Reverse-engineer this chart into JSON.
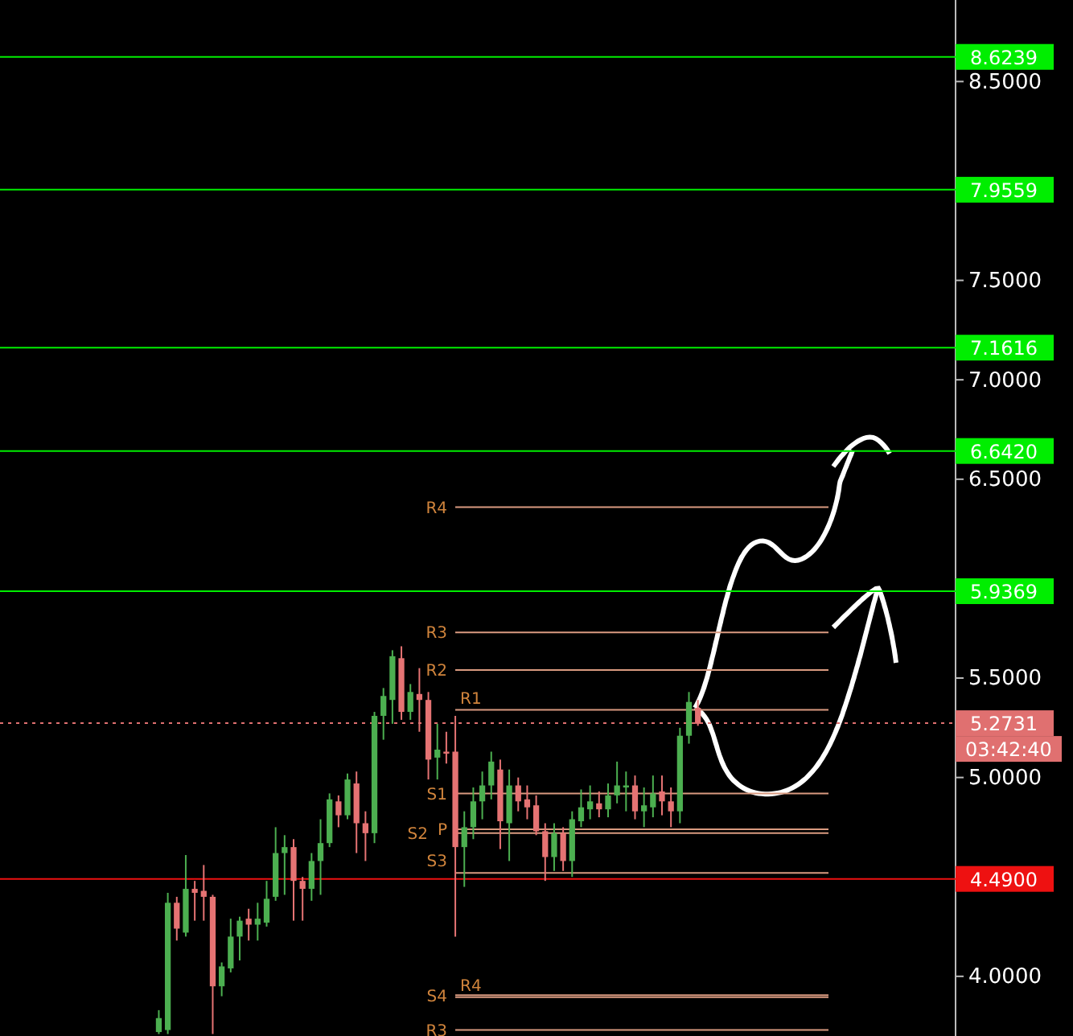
{
  "chart_data": {
    "type": "candlestick",
    "categories": [
      null,
      null,
      null,
      null,
      null,
      null,
      null,
      null,
      null,
      null,
      null,
      null,
      null,
      null,
      null,
      null,
      null,
      null,
      null,
      null,
      null,
      null,
      null,
      null,
      null,
      null,
      null,
      null,
      null,
      null,
      null,
      null,
      null,
      null,
      null,
      null,
      null,
      null,
      null,
      null,
      null,
      null,
      null,
      null,
      null,
      null,
      null,
      null,
      null,
      null,
      null,
      null,
      null,
      null,
      null,
      null,
      null,
      null,
      null,
      null,
      null,
      null,
      null,
      null,
      null,
      null,
      null,
      null,
      null,
      null,
      null,
      null,
      null,
      null,
      null,
      null,
      null,
      null,
      null,
      null,
      null,
      null,
      null,
      null,
      null,
      null,
      null,
      null,
      null,
      null,
      null,
      null,
      null,
      null,
      null,
      null,
      null,
      null,
      null,
      null,
      null,
      null,
      null,
      null,
      null,
      null
    ],
    "ohlc": [
      null,
      null,
      null,
      null,
      null,
      null,
      null,
      null,
      null,
      null,
      null,
      null,
      null,
      null,
      null,
      null,
      null,
      [
        3.72,
        3.83,
        3.71,
        3.79
      ],
      [
        3.73,
        4.42,
        3.71,
        4.37
      ],
      [
        4.37,
        4.4,
        4.18,
        4.24
      ],
      [
        4.22,
        4.61,
        4.2,
        4.44
      ],
      [
        4.44,
        4.48,
        4.28,
        4.42
      ],
      [
        4.43,
        4.56,
        4.28,
        4.4
      ],
      [
        4.4,
        4.41,
        3.71,
        3.95
      ],
      [
        3.95,
        4.07,
        3.9,
        4.05
      ],
      [
        4.04,
        4.29,
        4.02,
        4.2
      ],
      [
        4.2,
        4.3,
        4.08,
        4.28
      ],
      [
        4.29,
        4.34,
        4.18,
        4.26
      ],
      [
        4.26,
        4.37,
        4.18,
        4.29
      ],
      [
        4.27,
        4.48,
        4.25,
        4.39
      ],
      [
        4.4,
        4.75,
        4.38,
        4.62
      ],
      [
        4.62,
        4.71,
        4.41,
        4.65
      ],
      [
        4.65,
        4.69,
        4.28,
        4.48
      ],
      [
        4.48,
        4.5,
        4.28,
        4.44
      ],
      [
        4.44,
        4.62,
        4.38,
        4.58
      ],
      [
        4.58,
        4.79,
        4.41,
        4.67
      ],
      [
        4.67,
        4.92,
        4.65,
        4.89
      ],
      [
        4.88,
        4.91,
        4.75,
        4.81
      ],
      [
        4.81,
        5.02,
        4.79,
        4.99
      ],
      [
        4.97,
        5.03,
        4.62,
        4.77
      ],
      [
        4.77,
        4.83,
        4.58,
        4.72
      ],
      [
        4.72,
        5.33,
        4.67,
        5.31
      ],
      [
        5.31,
        5.45,
        5.19,
        5.41
      ],
      [
        5.39,
        5.64,
        5.27,
        5.61
      ],
      [
        5.6,
        5.66,
        5.29,
        5.33
      ],
      [
        5.33,
        5.47,
        5.29,
        5.43
      ],
      [
        5.42,
        5.55,
        5.23,
        5.39
      ],
      [
        5.39,
        5.43,
        4.99,
        5.09
      ],
      [
        5.1,
        5.27,
        4.99,
        5.14
      ],
      [
        5.13,
        5.23,
        5.07,
        5.12
      ],
      [
        5.13,
        5.31,
        4.2,
        4.65
      ],
      [
        4.65,
        4.83,
        4.45,
        4.75
      ],
      [
        4.75,
        4.95,
        4.69,
        4.88
      ],
      [
        4.88,
        5.03,
        4.79,
        4.96
      ],
      [
        4.96,
        5.13,
        4.89,
        5.08
      ],
      [
        5.04,
        5.09,
        4.64,
        4.78
      ],
      [
        4.77,
        5.04,
        4.58,
        4.96
      ],
      [
        4.96,
        5.0,
        4.83,
        4.88
      ],
      [
        4.89,
        4.96,
        4.79,
        4.85
      ],
      [
        4.86,
        4.91,
        4.71,
        4.73
      ],
      [
        4.73,
        4.77,
        4.48,
        4.6
      ],
      [
        4.6,
        4.77,
        4.53,
        4.72
      ],
      [
        4.72,
        4.75,
        4.53,
        4.58
      ],
      [
        4.58,
        4.83,
        4.5,
        4.79
      ],
      [
        4.78,
        4.94,
        4.75,
        4.85
      ],
      [
        4.84,
        4.96,
        4.79,
        4.88
      ],
      [
        4.87,
        4.93,
        4.8,
        4.84
      ],
      [
        4.84,
        4.97,
        4.8,
        4.91
      ],
      [
        4.91,
        5.08,
        4.87,
        4.96
      ],
      [
        4.95,
        5.03,
        4.83,
        4.96
      ],
      [
        4.96,
        5.01,
        4.79,
        4.83
      ],
      [
        4.83,
        4.95,
        4.75,
        4.86
      ],
      [
        4.85,
        5.01,
        4.8,
        4.92
      ],
      [
        4.93,
        5.01,
        4.81,
        4.88
      ],
      [
        4.88,
        4.95,
        4.75,
        4.83
      ],
      [
        4.83,
        5.25,
        4.77,
        5.21
      ],
      [
        5.21,
        5.43,
        5.17,
        5.38
      ],
      [
        5.35,
        5.39,
        5.26,
        5.27
      ],
      null,
      null,
      null,
      null,
      null,
      null,
      null,
      null,
      null,
      null,
      null,
      null,
      null,
      null,
      null,
      null,
      null,
      null,
      null,
      null,
      null,
      null,
      null,
      null,
      null,
      null,
      null,
      null
    ],
    "colors": [
      null,
      null,
      null,
      null,
      null,
      null,
      null,
      null,
      null,
      null,
      null,
      null,
      null,
      null,
      null,
      null,
      null,
      "#4caf50",
      "#4caf50",
      "#e57373",
      "#4caf50",
      "#e57373",
      "#e57373",
      "#e57373",
      "#4caf50",
      "#4caf50",
      "#4caf50",
      "#e57373",
      "#4caf50",
      "#4caf50",
      "#4caf50",
      "#4caf50",
      "#e57373",
      "#e57373",
      "#4caf50",
      "#4caf50",
      "#4caf50",
      "#e57373",
      "#4caf50",
      "#e57373",
      "#e57373",
      "#4caf50",
      "#4caf50",
      "#4caf50",
      "#e57373",
      "#4caf50",
      "#e57373",
      "#e57373",
      "#4caf50",
      "#e57373",
      "#e57373",
      "#4caf50",
      "#4caf50",
      "#4caf50",
      "#4caf50",
      "#e57373",
      "#4caf50",
      "#e57373",
      "#e57373",
      "#e57373",
      "#e57373",
      "#4caf50",
      "#e57373",
      "#4caf50",
      "#4caf50",
      "#4caf50",
      "#e57373",
      "#4caf50",
      "#4caf50",
      "#4caf50",
      "#e57373",
      "#4caf50",
      "#4caf50",
      "#e57373",
      "#e57373",
      "#4caf50",
      "#4caf50",
      "#e57373",
      null,
      null,
      null,
      null,
      null,
      null,
      null,
      null,
      null,
      null,
      null,
      null,
      null,
      null,
      null,
      null,
      null,
      null,
      null,
      null,
      null,
      null,
      null,
      null,
      null,
      null,
      null,
      null
    ],
    "ylim": [
      3.7,
      8.91
    ],
    "yticks": [
      {
        "value": 8.5,
        "label": "8.5000"
      },
      {
        "value": 7.5,
        "label": "7.5000"
      },
      {
        "value": 7.0,
        "label": "7.0000"
      },
      {
        "value": 6.5,
        "label": "6.5000"
      },
      {
        "value": 5.5,
        "label": "5.5000"
      },
      {
        "value": 5.0,
        "label": "5.0000"
      },
      {
        "value": 4.0,
        "label": "4.0000"
      }
    ],
    "tick_labels": "y",
    "grid": false,
    "ref_lines": [
      {
        "axis": "y",
        "value": 8.6239,
        "label": "8.6239",
        "color": "#00ee00"
      },
      {
        "axis": "y",
        "value": 7.9559,
        "label": "7.9559",
        "color": "#00ee00"
      },
      {
        "axis": "y",
        "value": 7.1616,
        "label": "7.1616",
        "color": "#00ee00"
      },
      {
        "axis": "y",
        "value": 6.642,
        "label": "6.6420",
        "color": "#00ee00"
      },
      {
        "axis": "y",
        "value": 5.9369,
        "label": "5.9369",
        "color": "#00ee00"
      },
      {
        "axis": "y",
        "value": 4.49,
        "label": "4.4900",
        "color": "#ee1111"
      },
      {
        "axis": "y",
        "value": 5.2731,
        "label": "5.2731",
        "color": "#e07070",
        "line_style": "dotted"
      },
      {
        "axis": "y",
        "value": 6.36,
        "label": "R4",
        "color": "#d99a80",
        "line_style": "solid"
      },
      {
        "axis": "y",
        "value": 5.73,
        "label": "R3",
        "color": "#d99a80",
        "line_style": "solid"
      },
      {
        "axis": "y",
        "value": 5.54,
        "label": "R2",
        "color": "#d99a80",
        "line_style": "solid"
      },
      {
        "axis": "y",
        "value": 5.34,
        "label": "R1",
        "color": "#d99a80",
        "line_style": "solid"
      },
      {
        "axis": "y",
        "value": 4.92,
        "label": "S1",
        "color": "#d99a80",
        "line_style": "solid"
      },
      {
        "axis": "y",
        "value": 4.74,
        "label": "P",
        "color": "#d99a80",
        "line_style": "solid"
      },
      {
        "axis": "y",
        "value": 4.72,
        "label": "S2",
        "color": "#d99a80",
        "line_style": "solid"
      },
      {
        "axis": "y",
        "value": 4.52,
        "label": "S3",
        "color": "#d99a80",
        "line_style": "solid"
      },
      {
        "axis": "y",
        "value": 3.905,
        "label": "S4",
        "color": "#d99a80",
        "line_style": "solid"
      },
      {
        "axis": "y",
        "value": 3.895,
        "label": "R4",
        "color": "#d99a80",
        "line_style": "solid"
      },
      {
        "axis": "y",
        "value": 3.73,
        "label": "R3",
        "color": "#d99a80",
        "line_style": "solid"
      }
    ],
    "annotations": [
      "03:42:40"
    ]
  }
}
